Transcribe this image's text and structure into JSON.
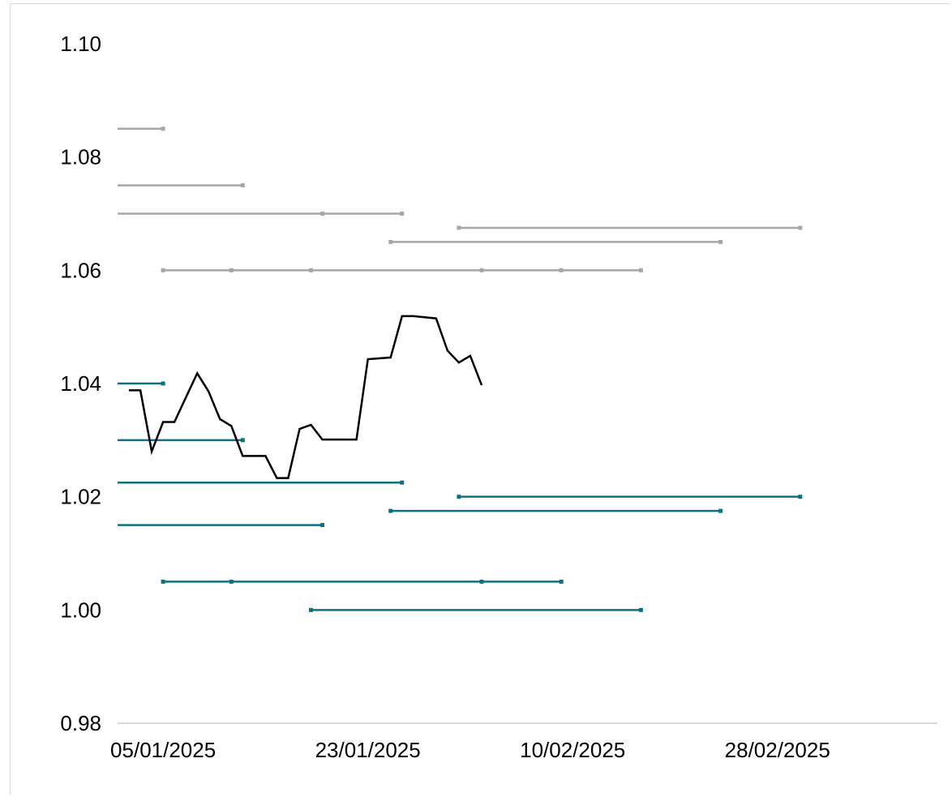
{
  "chart_data": {
    "type": "line",
    "title": "",
    "xlabel": "",
    "ylabel": "",
    "ylim": [
      0.98,
      1.1
    ],
    "y_ticks": [
      "0.98",
      "1.00",
      "1.02",
      "1.04",
      "1.06",
      "1.08",
      "1.10"
    ],
    "y_tick_values": [
      0.98,
      1.0,
      1.02,
      1.04,
      1.06,
      1.08,
      1.1
    ],
    "x_tick_labels": [
      "05/01/2025",
      "23/01/2025",
      "10/02/2025",
      "28/02/2025"
    ],
    "x_tick_dates": [
      "2025-01-05",
      "2025-01-23",
      "2025-02-10",
      "2025-02-28"
    ],
    "xlim": [
      "2025-01-01",
      "2025-03-10"
    ],
    "grid": false,
    "colors": {
      "spot": "#000000",
      "upper_range": "#a6a6a6",
      "lower_range": "#0e7080",
      "axis": "#d9d9d9"
    },
    "series": [
      {
        "kind": "spot",
        "points": [
          [
            "2025-01-02",
            1.0388
          ],
          [
            "2025-01-03",
            1.0388
          ],
          [
            "2025-01-04",
            1.028
          ],
          [
            "2025-01-05",
            1.0332
          ],
          [
            "2025-01-06",
            1.0332
          ],
          [
            "2025-01-08",
            1.0418
          ],
          [
            "2025-01-09",
            1.0386
          ],
          [
            "2025-01-10",
            1.0337
          ],
          [
            "2025-01-11",
            1.0325
          ],
          [
            "2025-01-12",
            1.0272
          ],
          [
            "2025-01-14",
            1.0272
          ],
          [
            "2025-01-15",
            1.0233
          ],
          [
            "2025-01-16",
            1.0233
          ],
          [
            "2025-01-17",
            1.032
          ],
          [
            "2025-01-18",
            1.0327
          ],
          [
            "2025-01-19",
            1.0301
          ],
          [
            "2025-01-22",
            1.0301
          ],
          [
            "2025-01-23",
            1.0443
          ],
          [
            "2025-01-25",
            1.0446
          ],
          [
            "2025-01-26",
            1.0519
          ],
          [
            "2025-01-27",
            1.0519
          ],
          [
            "2025-01-29",
            1.0515
          ],
          [
            "2025-01-30",
            1.0458
          ],
          [
            "2025-01-31",
            1.0437
          ],
          [
            "2025-02-01",
            1.0449
          ],
          [
            "2025-02-02",
            1.0397
          ]
        ]
      }
    ],
    "upper_ranges": [
      {
        "start": "2025-01-01",
        "end": "2025-01-05",
        "value": 1.085,
        "marks": [
          "2025-01-05"
        ]
      },
      {
        "start": "2025-01-01",
        "end": "2025-01-12",
        "value": 1.075,
        "marks": [
          "2025-01-12"
        ]
      },
      {
        "start": "2025-01-01",
        "end": "2025-01-26",
        "value": 1.07,
        "marks": [
          "2025-01-19",
          "2025-01-26"
        ]
      },
      {
        "start": "2025-01-25",
        "end": "2025-02-23",
        "value": 1.065,
        "marks": [
          "2025-01-25",
          "2025-02-23"
        ]
      },
      {
        "start": "2025-01-31",
        "end": "2025-03-02",
        "value": 1.0675,
        "marks": [
          "2025-01-31",
          "2025-03-02"
        ]
      },
      {
        "start": "2025-01-05",
        "end": "2025-02-16",
        "value": 1.06,
        "marks": [
          "2025-01-05",
          "2025-01-11",
          "2025-01-18",
          "2025-02-02",
          "2025-02-09",
          "2025-02-16"
        ]
      }
    ],
    "lower_ranges": [
      {
        "start": "2025-01-01",
        "end": "2025-01-05",
        "value": 1.04,
        "marks": [
          "2025-01-05"
        ]
      },
      {
        "start": "2025-01-01",
        "end": "2025-01-12",
        "value": 1.03,
        "marks": [
          "2025-01-12"
        ]
      },
      {
        "start": "2025-01-01",
        "end": "2025-01-26",
        "value": 1.0225,
        "marks": [
          "2025-01-26"
        ]
      },
      {
        "start": "2025-01-01",
        "end": "2025-01-19",
        "value": 1.015,
        "marks": [
          "2025-01-19"
        ]
      },
      {
        "start": "2025-01-31",
        "end": "2025-03-02",
        "value": 1.02,
        "marks": [
          "2025-01-31",
          "2025-03-02"
        ]
      },
      {
        "start": "2025-01-25",
        "end": "2025-02-23",
        "value": 1.0175,
        "marks": [
          "2025-01-25",
          "2025-02-23"
        ]
      },
      {
        "start": "2025-01-05",
        "end": "2025-02-09",
        "value": 1.005,
        "marks": [
          "2025-01-05",
          "2025-01-11",
          "2025-02-02",
          "2025-02-09"
        ]
      },
      {
        "start": "2025-01-18",
        "end": "2025-02-16",
        "value": 1.0,
        "marks": [
          "2025-01-18",
          "2025-02-16"
        ]
      }
    ]
  }
}
